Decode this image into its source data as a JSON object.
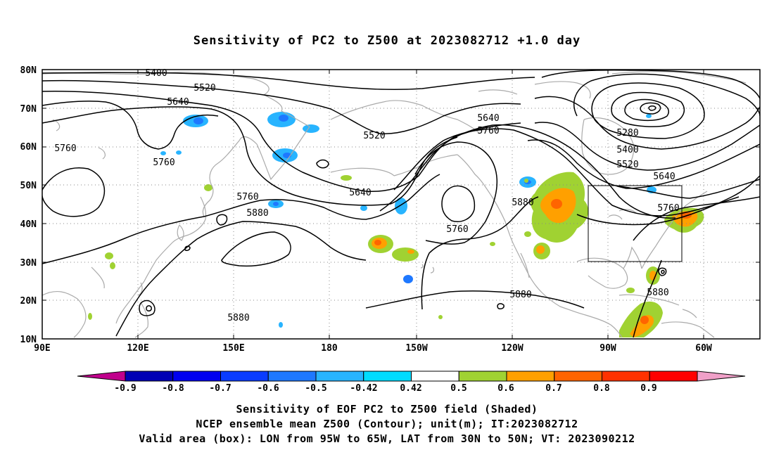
{
  "title": "Sensitivity of PC2 to Z500 at 2023082712 +1.0 day",
  "map": {
    "lat_labels": [
      "80N",
      "70N",
      "60N",
      "50N",
      "40N",
      "30N",
      "20N",
      "10N"
    ],
    "lon_labels": [
      "90E",
      "120E",
      "150E",
      "180",
      "150W",
      "120W",
      "90W",
      "60W"
    ],
    "contours": [
      {
        "label": "5400"
      },
      {
        "label": "5520"
      },
      {
        "label": "5640"
      },
      {
        "label": "5760"
      },
      {
        "label": "5760"
      },
      {
        "label": "5760"
      },
      {
        "label": "5880"
      },
      {
        "label": "5880"
      },
      {
        "label": "5520"
      },
      {
        "label": "5640"
      },
      {
        "label": "5760"
      },
      {
        "label": "5640"
      },
      {
        "label": "5760"
      },
      {
        "label": "5880"
      },
      {
        "label": "5880"
      },
      {
        "label": "5280"
      },
      {
        "label": "5400"
      },
      {
        "label": "5520"
      },
      {
        "label": "5640"
      },
      {
        "label": "5760"
      },
      {
        "label": "5880"
      }
    ],
    "colors": {
      "coast": "#aaaaaa",
      "contour": "#000000",
      "grid": "#888888"
    }
  },
  "colorbar": {
    "labels": [
      "-0.9",
      "-0.8",
      "-0.7",
      "-0.6",
      "-0.5",
      "-0.42",
      "0.42",
      "0.5",
      "0.6",
      "0.7",
      "0.8",
      "0.9"
    ],
    "colors": [
      "#c0008c",
      "#0000b4",
      "#0000f0",
      "#0a3cff",
      "#1e78ff",
      "#28b4ff",
      "#00dcff",
      "#ffffff",
      "#a0d232",
      "#ffa000",
      "#ff6400",
      "#ff3200",
      "#ff0000",
      "#f0a0c8"
    ]
  },
  "footer": {
    "line1": "Sensitivity of EOF PC2 to Z500 field (Shaded)",
    "line2": "NCEP ensemble mean Z500 (Contour); unit(m); IT:2023082712",
    "line3": "Valid area (box): LON from 95W to 65W, LAT from 30N to 50N; VT: 2023090212"
  }
}
